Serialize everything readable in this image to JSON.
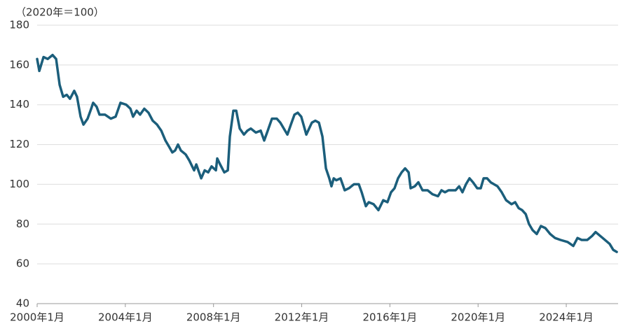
{
  "chart_data": {
    "type": "line",
    "y_label": "（2020年＝100）",
    "x": [
      2000,
      2000.1,
      2000.29,
      2000.48,
      2000.7,
      2000.86,
      2001.02,
      2001.18,
      2001.34,
      2001.49,
      2001.68,
      2001.81,
      2001.97,
      2002.1,
      2002.29,
      2002.45,
      2002.54,
      2002.7,
      2002.83,
      2003.08,
      2003.34,
      2003.56,
      2003.78,
      2004.04,
      2004.23,
      2004.35,
      2004.51,
      2004.67,
      2004.86,
      2005.05,
      2005.24,
      2005.44,
      2005.63,
      2005.82,
      2005.98,
      2006.13,
      2006.26,
      2006.39,
      2006.52,
      2006.74,
      2006.9,
      2007.12,
      2007.22,
      2007.44,
      2007.6,
      2007.76,
      2007.91,
      2008.11,
      2008.17,
      2008.3,
      2008.49,
      2008.65,
      2008.74,
      2008.9,
      2009.03,
      2009.19,
      2009.38,
      2009.54,
      2009.69,
      2009.92,
      2010.14,
      2010.3,
      2010.46,
      2010.65,
      2010.87,
      2011.03,
      2011.19,
      2011.35,
      2011.51,
      2011.67,
      2011.82,
      2011.98,
      2012.21,
      2012.46,
      2012.62,
      2012.78,
      2012.94,
      2013.1,
      2013.25,
      2013.35,
      2013.45,
      2013.57,
      2013.76,
      2013.95,
      2014.14,
      2014.37,
      2014.59,
      2014.72,
      2014.91,
      2015.04,
      2015.26,
      2015.48,
      2015.7,
      2015.89,
      2016.05,
      2016.21,
      2016.37,
      2016.53,
      2016.69,
      2016.85,
      2016.94,
      2017.13,
      2017.29,
      2017.48,
      2017.71,
      2017.93,
      2018.18,
      2018.34,
      2018.5,
      2018.66,
      2018.82,
      2018.98,
      2019.14,
      2019.29,
      2019.45,
      2019.61,
      2019.77,
      2019.96,
      2020.12,
      2020.25,
      2020.41,
      2020.57,
      2020.88,
      2021.07,
      2021.27,
      2021.52,
      2021.68,
      2021.84,
      2022,
      2022.16,
      2022.31,
      2022.47,
      2022.66,
      2022.85,
      2023.05,
      2023.27,
      2023.49,
      2023.74,
      2024.06,
      2024.32,
      2024.51,
      2024.7,
      2024.95,
      2025.17,
      2025.33,
      2025.65,
      2025.97,
      2026.13,
      2026.29
    ],
    "series": [
      {
        "color": "#1b5e7b",
        "values": [
          163,
          157,
          164,
          163,
          165,
          163,
          150,
          144,
          145,
          143,
          147,
          144,
          134,
          130,
          133,
          138,
          141,
          139,
          135,
          135,
          133,
          134,
          141,
          140,
          138,
          134,
          137,
          135,
          138,
          136,
          132,
          130,
          127,
          122,
          119,
          116,
          117,
          120,
          117,
          115,
          112,
          107,
          110,
          103,
          107,
          106,
          109,
          107,
          113,
          110,
          106,
          107,
          124,
          137,
          137,
          128,
          125,
          127,
          128,
          126,
          127,
          122,
          127,
          133,
          133,
          131,
          128,
          125,
          130,
          135,
          136,
          134,
          125,
          131,
          132,
          131,
          124,
          108,
          103,
          99,
          103,
          102,
          103,
          97,
          98,
          100,
          100,
          96,
          89,
          91,
          90,
          87,
          92,
          91,
          96,
          98,
          103,
          106,
          108,
          106,
          98,
          99,
          101,
          97,
          97,
          95,
          94,
          97,
          96,
          97,
          97,
          97,
          99,
          96,
          100,
          103,
          101,
          98,
          98,
          103,
          103,
          101,
          99,
          96,
          92,
          90,
          91,
          88,
          87,
          85,
          80,
          77,
          75,
          79,
          78,
          75,
          73,
          72,
          71,
          69,
          73,
          72,
          72,
          74,
          76,
          73,
          70,
          67,
          66
        ]
      }
    ],
    "xlim": [
      2000,
      2026.35
    ],
    "xticks": [
      {
        "value": 2000,
        "label": "2000年1月"
      },
      {
        "value": 2004,
        "label": "2004年1月"
      },
      {
        "value": 2008,
        "label": "2008年1月"
      },
      {
        "value": 2012,
        "label": "2012年1月"
      },
      {
        "value": 2016,
        "label": "2016年1月"
      },
      {
        "value": 2020,
        "label": "2020年1月"
      },
      {
        "value": 2024,
        "label": "2024年1月"
      }
    ],
    "ylim": [
      40,
      180
    ],
    "yticks": [
      40,
      60,
      80,
      100,
      120,
      140,
      160,
      180
    ],
    "grid": true
  }
}
